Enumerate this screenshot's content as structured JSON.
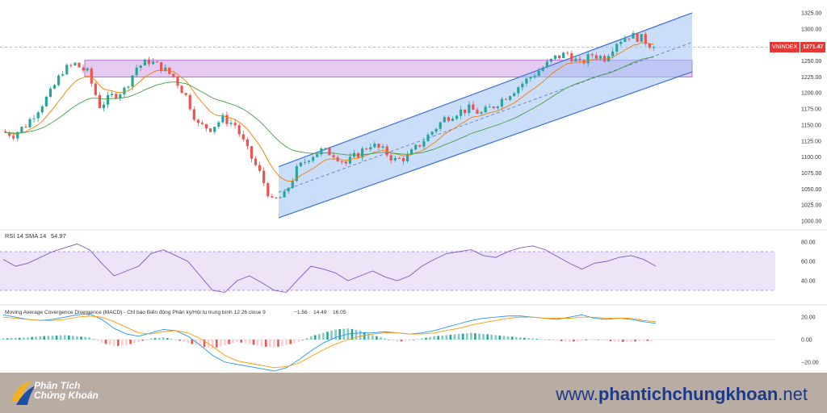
{
  "chart_data": [
    {
      "type": "candlestick",
      "symbol": "VNINDEX",
      "last_price": "1271.47",
      "y_ticks": [
        "1325.00",
        "1300.00",
        "1275.00",
        "1250.00",
        "1225.00",
        "1200.00",
        "1175.00",
        "1150.00",
        "1125.00",
        "1100.00",
        "1075.00",
        "1050.00",
        "1025.00",
        "1000.00"
      ],
      "ylim": [
        990,
        1335
      ],
      "close_path": [
        1140,
        1135,
        1150,
        1175,
        1200,
        1235,
        1245,
        1232,
        1180,
        1195,
        1205,
        1240,
        1250,
        1240,
        1225,
        1195,
        1150,
        1145,
        1160,
        1150,
        1110,
        1075,
        1030,
        1040,
        1080,
        1100,
        1110,
        1105,
        1090,
        1105,
        1120,
        1110,
        1095,
        1100,
        1120,
        1140,
        1160,
        1170,
        1175,
        1168,
        1180,
        1195,
        1210,
        1225,
        1240,
        1255,
        1262,
        1245,
        1260,
        1255,
        1280,
        1290,
        1285,
        1271.47
      ],
      "resistance_zone": [
        1225,
        1251
      ],
      "channel": {
        "upper_start": 1085,
        "upper_end": 1325,
        "lower_start": 1005,
        "lower_end": 1233
      }
    },
    {
      "type": "line",
      "title": "RSI 14 SMA 14",
      "value": "54.97",
      "y_ticks": [
        "80.00",
        "60.00",
        "40.00"
      ],
      "ylim": [
        20,
        90
      ],
      "band": [
        30,
        70
      ],
      "values": [
        62,
        55,
        58,
        64,
        70,
        74,
        78,
        72,
        58,
        45,
        50,
        55,
        68,
        72,
        66,
        60,
        45,
        30,
        28,
        40,
        45,
        38,
        30,
        28,
        42,
        55,
        52,
        48,
        40,
        45,
        50,
        44,
        40,
        45,
        55,
        62,
        68,
        70,
        72,
        66,
        64,
        70,
        74,
        76,
        72,
        65,
        58,
        52,
        58,
        60,
        64,
        66,
        62,
        54.97
      ]
    },
    {
      "type": "histogram+line",
      "title": "Moving Average Covergence Divergence (MACD) - Chỉ báo Biến động Phân kỳ/Hội tụ trung bình 12 26 close 9",
      "values": [
        "−1.56",
        "14.49",
        "16.05"
      ],
      "y_ticks": [
        "20.00",
        "0.00",
        "−20.00"
      ],
      "ylim": [
        -28,
        28
      ],
      "histogram": [
        1,
        1.5,
        2,
        3,
        3.5,
        4,
        3,
        2,
        -3,
        -6,
        -5,
        -2,
        1,
        2,
        0,
        -3,
        -6,
        -8,
        -5,
        -2,
        -4,
        -6,
        -7,
        -5,
        -2,
        3,
        6,
        9,
        10,
        8,
        4,
        1,
        -2,
        -1,
        1,
        3,
        4,
        5,
        6,
        5,
        4,
        3,
        2,
        1,
        0,
        -1,
        -2,
        -1,
        0,
        -1,
        -2,
        -2,
        -1,
        -1.56
      ],
      "macd": [
        22,
        20,
        18,
        17,
        18,
        20,
        22,
        23,
        18,
        10,
        5,
        3,
        6,
        9,
        8,
        3,
        -5,
        -14,
        -20,
        -22,
        -24,
        -26,
        -28,
        -25,
        -18,
        -10,
        -3,
        2,
        5,
        6,
        6,
        7,
        6,
        5,
        6,
        8,
        11,
        14,
        17,
        19,
        20,
        21,
        21,
        20,
        19,
        18,
        20,
        22,
        19,
        18,
        19,
        18,
        16,
        14.49
      ],
      "signal": [
        20,
        19,
        18,
        17,
        17,
        18,
        20,
        21,
        20,
        16,
        11,
        6,
        5,
        7,
        8,
        6,
        1,
        -6,
        -14,
        -19,
        -21,
        -23,
        -25,
        -24,
        -21,
        -15,
        -9,
        -4,
        0,
        3,
        5,
        6,
        6,
        5,
        5,
        6,
        8,
        10,
        13,
        15,
        17,
        19,
        20,
        20,
        19,
        19,
        19,
        20,
        20,
        19,
        19,
        19,
        17,
        16.05
      ]
    }
  ],
  "branding": {
    "logo_line1": "Phân Tích",
    "logo_line2": "Chứng Khoán",
    "website_prefix": "www.",
    "website_bold": "phantichchungkhoan",
    "website_suffix": ".net"
  },
  "colors": {
    "up": "#26a69a",
    "down": "#ef5350",
    "channel": "#3b6fe0",
    "zone": "#c58be0",
    "rsi": "#7e57c2",
    "macd": "#2196f3",
    "signal": "#ff9800",
    "ema_fast": "#f57c00",
    "ema_slow": "#43a047"
  }
}
